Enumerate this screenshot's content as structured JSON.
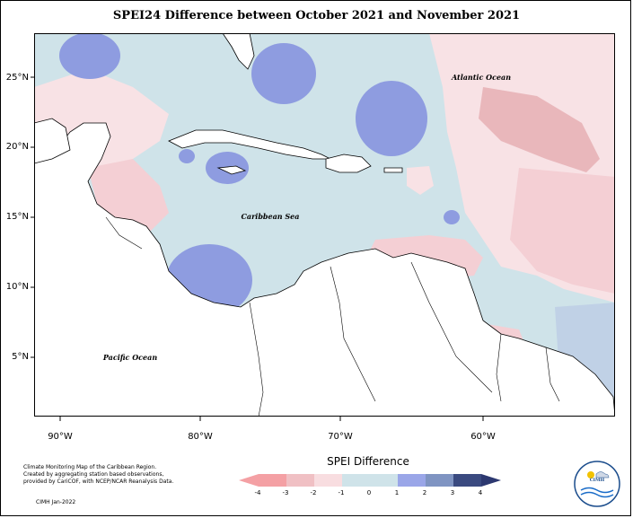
{
  "title": "SPEI24 Difference between October 2021 and November 2021",
  "map": {
    "latitude_labels": [
      "25°N",
      "20°N",
      "15°N",
      "10°N",
      "5°N"
    ],
    "longitude_labels": [
      "90°W",
      "80°W",
      "70°W",
      "60°W"
    ],
    "region_labels": {
      "atlantic": "Atlantic Ocean",
      "caribbean": "Caribbean Sea",
      "pacific": "Pacific Ocean"
    }
  },
  "legend": {
    "title": "SPEI Difference",
    "ticks": [
      "-4",
      "-3",
      "-2",
      "-1",
      "0",
      "1",
      "2",
      "3",
      "4"
    ],
    "colors": [
      "#f4a0a4",
      "#f0c0c4",
      "#f8dde0",
      "#cfe3e9",
      "#cfe3e9",
      "#9aa6e8",
      "#7f94c2",
      "#3a4a80"
    ]
  },
  "footer": {
    "credit_lines": [
      "Climate Monitoring Map of the Caribbean Region.",
      "Created by aggregating station based observations,",
      "provided by CariCOF, with NCEP/NCAR Reanalysis Data."
    ],
    "date": "CIMH Jan-2022",
    "logo_text": "CIMH"
  },
  "colors": {
    "neutral": "#cfe3e9",
    "light_pink": "#f8e2e5",
    "pink": "#f4cfd4",
    "dark_pink": "#e6afb4",
    "blue": "#8e9ce0",
    "land": "#ffffff"
  }
}
